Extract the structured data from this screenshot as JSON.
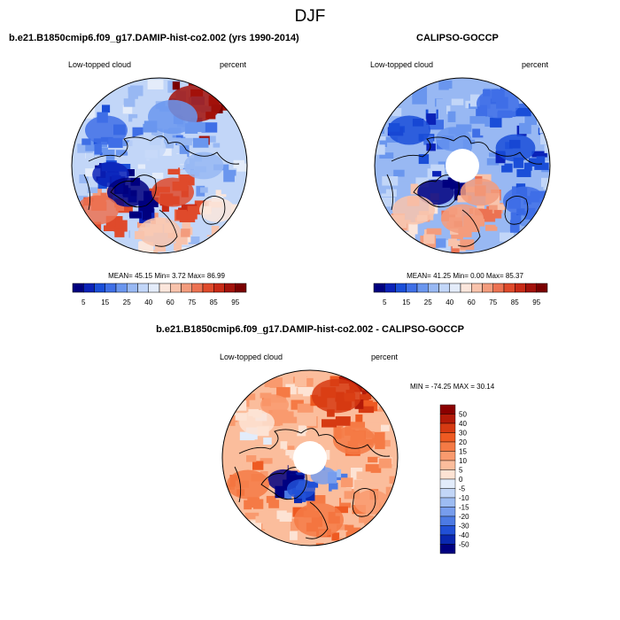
{
  "figure": {
    "title": "DJF"
  },
  "chart_data": [
    {
      "type": "heatmap",
      "projection": "north-polar-stereographic",
      "title": "b.e21.B1850cmip6.f09_g17.DAMIP-hist-co2.002 (yrs 1990-2014)",
      "variable": "Low-topped cloud",
      "units": "percent",
      "stats": "MEAN= 45.15 Min= 3.72 Max= 86.99",
      "stat_values": {
        "mean": 45.15,
        "min": 3.72,
        "max": 86.99
      },
      "colorbar": {
        "orientation": "horizontal",
        "levels": [
          5,
          10,
          15,
          20,
          25,
          30,
          40,
          50,
          60,
          65,
          70,
          75,
          80,
          85,
          90,
          95
        ],
        "tick_labels": [
          "5",
          "15",
          "25",
          "40",
          "60",
          "75",
          "85",
          "95"
        ],
        "colors": [
          "#00007f",
          "#0a22b8",
          "#1a4ed8",
          "#3f6fe6",
          "#6a96ee",
          "#98b8f3",
          "#c2d6f8",
          "#e4ecfa",
          "#fbe6dc",
          "#f8c3ac",
          "#f39c7d",
          "#ec7252",
          "#df4a2b",
          "#c82a16",
          "#a3120a",
          "#7a0000"
        ]
      }
    },
    {
      "type": "heatmap",
      "projection": "north-polar-stereographic",
      "title": "CALIPSO-GOCCP",
      "variable": "Low-topped cloud",
      "units": "percent",
      "stats": "MEAN= 41.25 Min= 0.00 Max= 85.37",
      "stat_values": {
        "mean": 41.25,
        "min": 0.0,
        "max": 85.37
      },
      "colorbar": {
        "orientation": "horizontal",
        "levels": [
          5,
          10,
          15,
          20,
          25,
          30,
          40,
          50,
          60,
          65,
          70,
          75,
          80,
          85,
          90,
          95
        ],
        "tick_labels": [
          "5",
          "15",
          "25",
          "40",
          "60",
          "75",
          "85",
          "95"
        ],
        "colors": [
          "#00007f",
          "#0a22b8",
          "#1a4ed8",
          "#3f6fe6",
          "#6a96ee",
          "#98b8f3",
          "#c2d6f8",
          "#e4ecfa",
          "#fbe6dc",
          "#f8c3ac",
          "#f39c7d",
          "#ec7252",
          "#df4a2b",
          "#c82a16",
          "#a3120a",
          "#7a0000"
        ]
      }
    },
    {
      "type": "heatmap",
      "projection": "north-polar-stereographic",
      "title": "b.e21.B1850cmip6.f09_g17.DAMIP-hist-co2.002 - CALIPSO-GOCCP",
      "variable": "Low-topped cloud",
      "units": "percent",
      "stats": "MIN = -74.25 MAX = 30.14",
      "stat_values": {
        "min": -74.25,
        "max": 30.14
      },
      "colorbar": {
        "orientation": "vertical",
        "levels": [
          50,
          40,
          30,
          20,
          15,
          10,
          5,
          0,
          -5,
          -10,
          -15,
          -20,
          -30,
          -40,
          -50
        ],
        "tick_labels": [
          "50",
          "40",
          "30",
          "20",
          "15",
          "10",
          "5",
          "0",
          "-5",
          "-10",
          "-15",
          "-20",
          "-30",
          "-40",
          "-50"
        ],
        "colors": [
          "#8b0000",
          "#b31a08",
          "#d63a12",
          "#ee5a22",
          "#f57a45",
          "#f99a6e",
          "#fbbd9c",
          "#fde3d4",
          "#e2ecfb",
          "#c2d6f7",
          "#9dbcf2",
          "#779ded",
          "#4c7ae4",
          "#2150d6",
          "#0a28b0",
          "#000080"
        ]
      }
    }
  ]
}
